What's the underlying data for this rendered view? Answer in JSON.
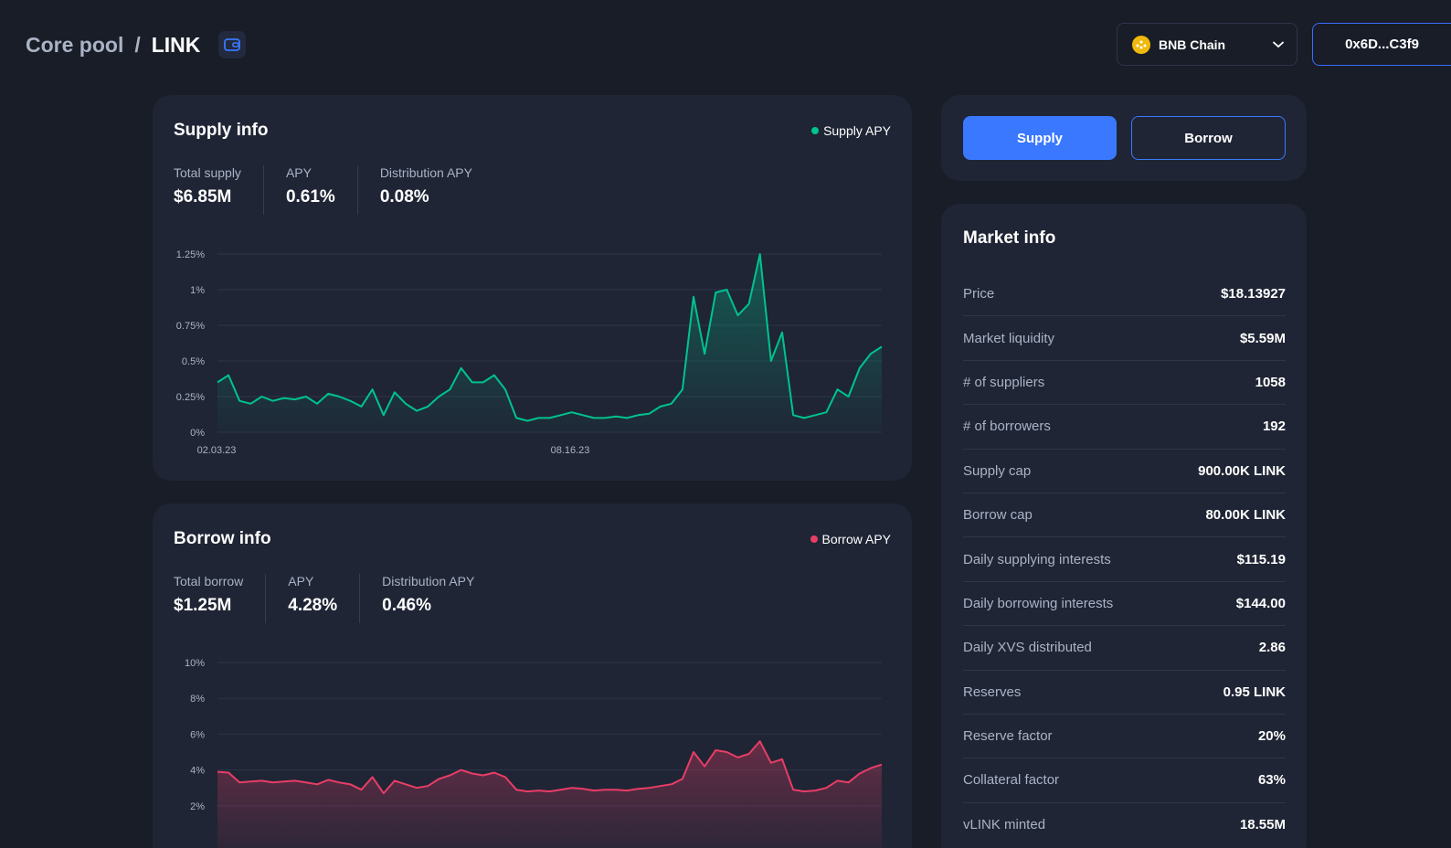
{
  "header": {
    "pool": "Core pool",
    "separator": "/",
    "asset": "LINK",
    "chain": "BNB Chain",
    "address": "0x6D...C3f9"
  },
  "supply_info": {
    "title": "Supply info",
    "legend": "Supply APY",
    "color": "#00c38e",
    "stats": [
      {
        "label": "Total supply",
        "value": "$6.85M"
      },
      {
        "label": "APY",
        "value": "0.61%"
      },
      {
        "label": "Distribution APY",
        "value": "0.08%"
      }
    ]
  },
  "borrow_info": {
    "title": "Borrow info",
    "legend": "Borrow APY",
    "color": "#e93d66",
    "stats": [
      {
        "label": "Total borrow",
        "value": "$1.25M"
      },
      {
        "label": "APY",
        "value": "4.28%"
      },
      {
        "label": "Distribution APY",
        "value": "0.46%"
      }
    ]
  },
  "actions": {
    "supply": "Supply",
    "borrow": "Borrow"
  },
  "market_info": {
    "title": "Market info",
    "rows": [
      {
        "label": "Price",
        "value": "$18.13927"
      },
      {
        "label": "Market liquidity",
        "value": "$5.59M"
      },
      {
        "label": "# of suppliers",
        "value": "1058"
      },
      {
        "label": "# of borrowers",
        "value": "192"
      },
      {
        "label": "Supply cap",
        "value": "900.00K LINK"
      },
      {
        "label": "Borrow cap",
        "value": "80.00K LINK"
      },
      {
        "label": "Daily supplying interests",
        "value": "$115.19"
      },
      {
        "label": "Daily borrowing interests",
        "value": "$144.00"
      },
      {
        "label": "Daily XVS distributed",
        "value": "2.86"
      },
      {
        "label": "Reserves",
        "value": "0.95 LINK"
      },
      {
        "label": "Reserve factor",
        "value": "20%"
      },
      {
        "label": "Collateral factor",
        "value": "63%"
      },
      {
        "label": "vLINK minted",
        "value": "18.55M"
      }
    ]
  },
  "chart_data": [
    {
      "type": "area",
      "series": [
        {
          "name": "Supply APY",
          "values": [
            0.35,
            0.4,
            0.22,
            0.2,
            0.25,
            0.22,
            0.24,
            0.23,
            0.25,
            0.2,
            0.27,
            0.25,
            0.22,
            0.18,
            0.3,
            0.12,
            0.28,
            0.2,
            0.15,
            0.18,
            0.25,
            0.3,
            0.45,
            0.35,
            0.35,
            0.4,
            0.3,
            0.1,
            0.08,
            0.1,
            0.1,
            0.12,
            0.14,
            0.12,
            0.1,
            0.1,
            0.11,
            0.1,
            0.12,
            0.13,
            0.18,
            0.2,
            0.3,
            0.95,
            0.55,
            0.98,
            1.0,
            0.82,
            0.9,
            1.25,
            0.5,
            0.7,
            0.12,
            0.1,
            0.12,
            0.14,
            0.3,
            0.25,
            0.45,
            0.55,
            0.6
          ]
        }
      ],
      "y_ticks": [
        "0%",
        "0.25%",
        "0.5%",
        "0.75%",
        "1%",
        "1.25%"
      ],
      "x_ticks": [
        "02.03.23",
        "08.16.23"
      ],
      "ylim": [
        0,
        1.25
      ]
    },
    {
      "type": "area",
      "series": [
        {
          "name": "Borrow APY",
          "values": [
            3.9,
            3.85,
            3.3,
            3.35,
            3.4,
            3.3,
            3.35,
            3.4,
            3.3,
            3.2,
            3.45,
            3.3,
            3.2,
            2.9,
            3.6,
            2.7,
            3.4,
            3.2,
            3.0,
            3.1,
            3.5,
            3.7,
            4.0,
            3.8,
            3.7,
            3.85,
            3.6,
            2.9,
            2.8,
            2.85,
            2.8,
            2.9,
            3.0,
            2.95,
            2.85,
            2.9,
            2.9,
            2.85,
            2.95,
            3.0,
            3.1,
            3.2,
            3.5,
            5.0,
            4.2,
            5.1,
            5.0,
            4.7,
            4.9,
            5.6,
            4.4,
            4.6,
            2.9,
            2.8,
            2.85,
            3.0,
            3.4,
            3.3,
            3.8,
            4.1,
            4.3
          ]
        }
      ],
      "y_ticks": [
        "2%",
        "4%",
        "6%",
        "8%",
        "10%"
      ],
      "ylim": [
        0,
        10
      ]
    }
  ]
}
